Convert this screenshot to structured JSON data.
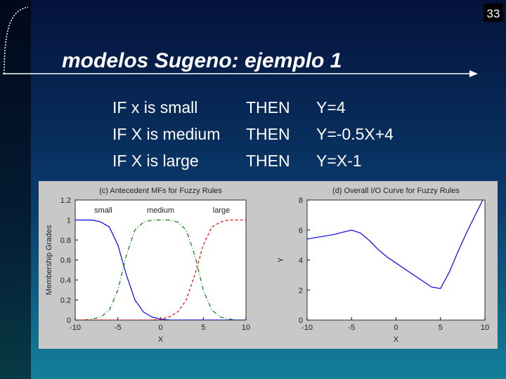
{
  "slide_number": "33",
  "title": "modelos Sugeno: ejemplo 1",
  "rules": [
    [
      "IF x is small",
      "THEN",
      "Y=4"
    ],
    [
      "IF X is medium",
      "THEN",
      "Y=-0.5X+4"
    ],
    [
      "IF X is large",
      "THEN",
      "Y=X-1"
    ]
  ],
  "chart_data": [
    {
      "type": "line",
      "title": "(c) Antecedent MFs for Fuzzy Rules",
      "x_label": "X",
      "y_label": "Membership Grades",
      "x": [
        -10,
        -9,
        -8,
        -7,
        -6,
        -5,
        -4,
        -3,
        -2,
        -1,
        0,
        1,
        2,
        3,
        4,
        5,
        6,
        7,
        8,
        9,
        10
      ],
      "series": [
        {
          "name": "small",
          "color": "#0000ff",
          "linestyle": "solid",
          "values": [
            1,
            1,
            1,
            0.98,
            0.93,
            0.75,
            0.45,
            0.2,
            0.08,
            0.03,
            0.01,
            0,
            0,
            0,
            0,
            0,
            0,
            0,
            0,
            0,
            0
          ]
        },
        {
          "name": "medium",
          "color": "#008000",
          "linestyle": "dashdot",
          "values": [
            0,
            0,
            0.01,
            0.03,
            0.1,
            0.3,
            0.65,
            0.9,
            0.98,
            1,
            1,
            1,
            0.98,
            0.9,
            0.65,
            0.3,
            0.1,
            0.03,
            0.01,
            0,
            0
          ]
        },
        {
          "name": "large",
          "color": "#ff0000",
          "linestyle": "dashed",
          "values": [
            0,
            0,
            0,
            0,
            0,
            0,
            0,
            0,
            0,
            0,
            0.01,
            0.03,
            0.08,
            0.2,
            0.45,
            0.75,
            0.93,
            0.98,
            1,
            1,
            1
          ]
        }
      ],
      "xlim": [
        -10,
        10
      ],
      "xticks": [
        -10,
        -5,
        0,
        5,
        10
      ],
      "ylim": [
        0,
        1.2
      ],
      "yticks": [
        0,
        0.2,
        0.4,
        0.6,
        0.8,
        1,
        1.2
      ]
    },
    {
      "type": "line",
      "title": "(d) Overall I/O Curve for Fuzzy Rules",
      "x_label": "X",
      "y_label": "Y",
      "x": [
        -10,
        -9,
        -8,
        -7,
        -6,
        -5,
        -4,
        -3,
        -2,
        -1,
        0,
        1,
        2,
        3,
        4,
        5,
        6,
        7,
        8,
        9,
        10
      ],
      "series": [
        {
          "name": "Y",
          "color": "#0000ff",
          "linestyle": "solid",
          "values": [
            5.4,
            5.5,
            5.6,
            5.7,
            5.85,
            6.0,
            5.8,
            5.3,
            4.7,
            4.2,
            3.8,
            3.4,
            3.0,
            2.6,
            2.2,
            2.1,
            3.2,
            4.6,
            5.9,
            7.1,
            8.3
          ]
        }
      ],
      "xlim": [
        -10,
        10
      ],
      "xticks": [
        -10,
        -5,
        0,
        5,
        10
      ],
      "ylim": [
        0,
        8
      ],
      "yticks": [
        0,
        2,
        4,
        6,
        8
      ]
    }
  ]
}
